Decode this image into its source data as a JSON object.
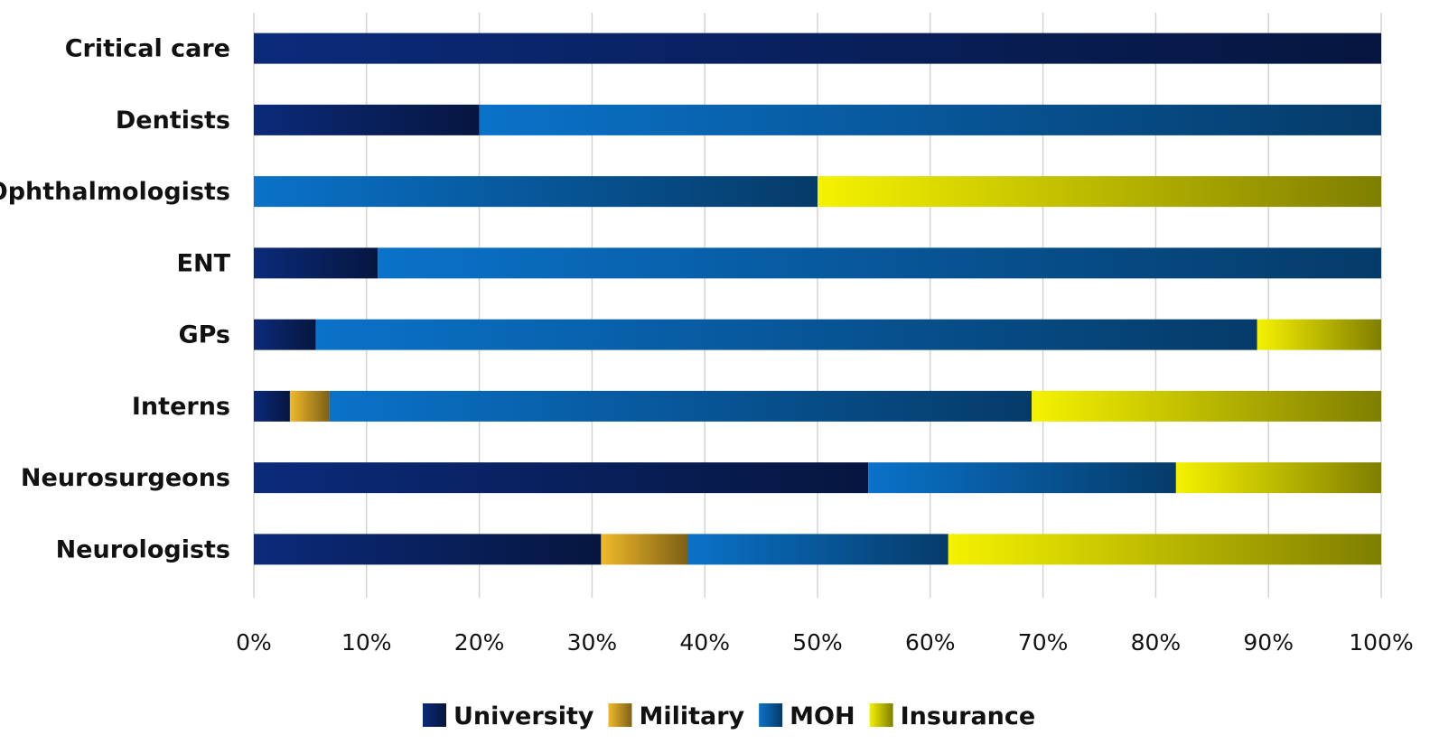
{
  "chart_data": {
    "type": "bar",
    "orientation": "horizontal",
    "stacked": "percent",
    "categories": [
      "Critical care",
      "Dentists",
      "Ophthalmologists",
      "ENT",
      "GPs",
      "Interns",
      "Neurosurgeons",
      "Neurologists"
    ],
    "series": [
      {
        "name": "University",
        "color": "#0b2a7a",
        "values": [
          100,
          20,
          0,
          11,
          5.5,
          3.2,
          54.5,
          30.8
        ]
      },
      {
        "name": "Military",
        "color": "#f0b92a",
        "values": [
          0,
          0,
          0,
          0,
          0,
          3.5,
          0,
          7.7
        ]
      },
      {
        "name": "MOH",
        "color": "#0a72c9",
        "values": [
          0,
          80,
          50,
          89,
          83.5,
          62.3,
          27.3,
          23.1
        ]
      },
      {
        "name": "Insurance",
        "color": "#f5f200",
        "values": [
          0,
          0,
          50,
          0,
          11,
          31,
          18.2,
          38.4
        ]
      }
    ],
    "xlim": [
      0,
      100
    ],
    "xticks": [
      "0%",
      "10%",
      "20%",
      "30%",
      "40%",
      "50%",
      "60%",
      "70%",
      "80%",
      "90%",
      "100%"
    ],
    "grid": "vertical",
    "legend_position": "bottom"
  }
}
